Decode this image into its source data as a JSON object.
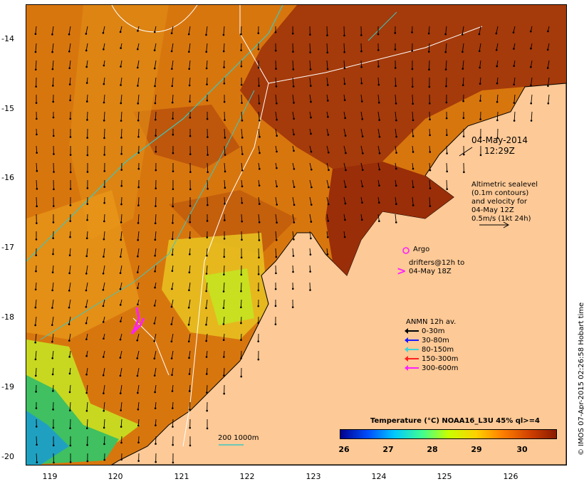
{
  "map": {
    "date_line1": "04-May-2014",
    "date_line2": "12:29Z",
    "altimetry_note": [
      "Altimetric sealevel",
      "(0.1m contours)",
      "and velocity for",
      "04-May 12Z",
      "0.5m/s (1kt 24h)"
    ],
    "argo_label": "Argo",
    "drifters_note": [
      "drifters@12h to",
      "04-May 18Z"
    ],
    "scale_label": "200  1000m",
    "credit": "© IMOS 07-Apr-2015 02:26:58 Hobart time",
    "lat_ticks": [
      "-14",
      "-15",
      "-16",
      "-17",
      "-18",
      "-19",
      "-20"
    ],
    "lon_ticks": [
      "119",
      "120",
      "121",
      "122",
      "123",
      "124",
      "125",
      "126"
    ],
    "anmn": {
      "title": "ANMN 12h av.",
      "items": [
        {
          "label": "0-30m",
          "color": "#000000"
        },
        {
          "label": "30-80m",
          "color": "#1a1aff"
        },
        {
          "label": "80-150m",
          "color": "#3cd6d6"
        },
        {
          "label": "150-300m",
          "color": "#ff2020"
        },
        {
          "label": "300-600m",
          "color": "#ff20ff"
        }
      ]
    },
    "colorbar": {
      "title": "Temperature (°C) NOAA16_L3U 45% ql>=4",
      "ticks": [
        "26",
        "27",
        "28",
        "29",
        "30"
      ],
      "colors": [
        "#00008f",
        "#0050ff",
        "#00c8ff",
        "#40ff90",
        "#c8ff00",
        "#ffd000",
        "#ff8000",
        "#d04000",
        "#8a1a00"
      ]
    },
    "colors": {
      "land": "#fdc996",
      "sea_warm": "#a53a0a",
      "sea_mid": "#d8760e",
      "sea_light": "#f0a820",
      "sea_cool": "#c8e020",
      "coast_green": "#20b040",
      "bathy": "#3cc8c0",
      "argo": "#ff20ff"
    }
  }
}
